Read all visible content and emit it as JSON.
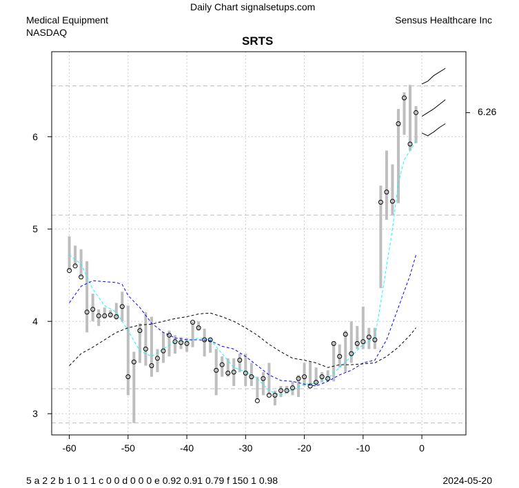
{
  "header": {
    "source": "Daily Chart signalsetups.com",
    "sector": "Medical Equipment",
    "exchange": "NASDAQ",
    "company": "Sensus Healthcare Inc"
  },
  "footer": {
    "codes": "5  a 2 2 b 1 0 1 1 c 0 0 d 0 0 0 e 0.92 0.91 0.79 f 150 1 0.98",
    "date": "2024-05-20"
  },
  "chart_data": {
    "type": "ohlc",
    "title": "SRTS",
    "xlim": [
      -63,
      7.5
    ],
    "ylim": [
      2.77,
      6.92
    ],
    "xticks": [
      -60,
      -50,
      -40,
      -30,
      -20,
      -10,
      0
    ],
    "yticks": [
      3,
      4,
      5,
      6
    ],
    "last_price_label": "6.26",
    "last_price": 6.26,
    "hlines": [
      6.55,
      5.15,
      3.27,
      2.9
    ],
    "bars": [
      [
        -60,
        4.55,
        4.92,
        4.55
      ],
      [
        -59,
        4.6,
        4.82,
        4.6
      ],
      [
        -58,
        4.48,
        4.78,
        4.48
      ],
      [
        -57,
        3.88,
        4.65,
        4.1
      ],
      [
        -56,
        4.0,
        4.3,
        4.13
      ],
      [
        -55,
        3.95,
        4.13,
        4.06
      ],
      [
        -54,
        4.03,
        4.15,
        4.06
      ],
      [
        -53,
        4.04,
        4.12,
        4.07
      ],
      [
        -52,
        4.02,
        4.2,
        4.05
      ],
      [
        -51,
        4.0,
        4.32,
        4.16
      ],
      [
        -50,
        3.2,
        4.17,
        3.4
      ],
      [
        -49,
        2.9,
        3.67,
        3.56
      ],
      [
        -48,
        3.55,
        3.98,
        3.9
      ],
      [
        -47,
        3.52,
        4.1,
        3.7
      ],
      [
        -46,
        3.4,
        4.05,
        3.52
      ],
      [
        -45,
        3.45,
        3.7,
        3.6
      ],
      [
        -44,
        3.55,
        3.88,
        3.68
      ],
      [
        -43,
        3.62,
        3.9,
        3.85
      ],
      [
        -42,
        3.65,
        3.85,
        3.78
      ],
      [
        -41,
        3.7,
        3.83,
        3.77
      ],
      [
        -40,
        3.67,
        3.82,
        3.76
      ],
      [
        -39,
        3.72,
        4.0,
        3.99
      ],
      [
        -38,
        3.9,
        4.0,
        3.93
      ],
      [
        -37,
        3.62,
        3.92,
        3.8
      ],
      [
        -36,
        3.66,
        3.82,
        3.8
      ],
      [
        -35,
        3.2,
        3.7,
        3.47
      ],
      [
        -34,
        3.4,
        3.62,
        3.53
      ],
      [
        -33,
        3.4,
        3.6,
        3.44
      ],
      [
        -32,
        3.3,
        3.6,
        3.45
      ],
      [
        -31,
        3.45,
        3.65,
        3.58
      ],
      [
        -30,
        3.3,
        3.65,
        3.44
      ],
      [
        -29,
        3.3,
        3.55,
        3.4
      ],
      [
        -28,
        3.15,
        3.4,
        3.14
      ],
      [
        -27,
        3.2,
        3.45,
        3.38
      ],
      [
        -26,
        3.2,
        3.55,
        3.2
      ],
      [
        -25,
        3.09,
        3.25,
        3.2
      ],
      [
        -24,
        3.18,
        3.3,
        3.25
      ],
      [
        -23,
        3.22,
        3.3,
        3.25
      ],
      [
        -22,
        3.2,
        3.35,
        3.28
      ],
      [
        -21,
        3.18,
        3.42,
        3.38
      ],
      [
        -20,
        3.3,
        3.55,
        3.4
      ],
      [
        -19,
        3.3,
        3.56,
        3.3
      ],
      [
        -18,
        3.3,
        3.5,
        3.34
      ],
      [
        -17,
        3.34,
        3.45,
        3.4
      ],
      [
        -16,
        3.36,
        3.47,
        3.38
      ],
      [
        -15,
        3.35,
        3.78,
        3.76
      ],
      [
        -14,
        3.5,
        3.75,
        3.62
      ],
      [
        -13,
        3.45,
        3.9,
        3.86
      ],
      [
        -12,
        3.55,
        4.0,
        3.65
      ],
      [
        -11,
        3.7,
        3.95,
        3.76
      ],
      [
        -10,
        3.7,
        4.16,
        3.78
      ],
      [
        -9,
        3.7,
        3.93,
        3.83
      ],
      [
        -8,
        3.7,
        3.93,
        3.8
      ],
      [
        -7,
        4.36,
        5.47,
        5.29
      ],
      [
        -6,
        5.1,
        5.85,
        5.4
      ],
      [
        -5,
        5.15,
        5.7,
        5.3
      ],
      [
        -4,
        5.28,
        6.3,
        6.14
      ],
      [
        -3,
        6.02,
        6.48,
        6.42
      ],
      [
        -2,
        5.85,
        6.56,
        5.92
      ],
      [
        -1,
        5.93,
        6.33,
        6.26
      ]
    ],
    "series": [
      {
        "name": "ma-short",
        "color": "#00ffff",
        "x": [
          -60,
          -58,
          -56,
          -54,
          -52,
          -50,
          -48,
          -46,
          -44,
          -42,
          -40,
          -38,
          -36,
          -34,
          -32,
          -30,
          -28,
          -26,
          -24,
          -22,
          -20,
          -18,
          -16,
          -14,
          -12,
          -10,
          -8,
          -7,
          -6,
          -5,
          -4,
          -3,
          -2,
          -1
        ],
        "y": [
          4.72,
          4.62,
          4.35,
          4.17,
          4.1,
          3.9,
          3.68,
          3.62,
          3.7,
          3.78,
          3.78,
          3.82,
          3.8,
          3.65,
          3.5,
          3.45,
          3.38,
          3.25,
          3.2,
          3.26,
          3.32,
          3.33,
          3.38,
          3.5,
          3.62,
          3.75,
          3.82,
          4.2,
          4.6,
          5.0,
          5.5,
          5.75,
          5.85,
          5.95
        ]
      },
      {
        "name": "ma-mid",
        "color": "#0000ff",
        "x": [
          -60,
          -58,
          -56,
          -54,
          -52,
          -51,
          -50,
          -48,
          -46,
          -44,
          -42,
          -40,
          -38,
          -36,
          -34,
          -32,
          -30,
          -28,
          -26,
          -24,
          -22,
          -20,
          -18,
          -16,
          -14,
          -12,
          -10,
          -8,
          -6,
          -4,
          -2,
          -1
        ],
        "y": [
          4.2,
          4.38,
          4.44,
          4.43,
          4.42,
          4.4,
          4.28,
          4.15,
          3.98,
          3.88,
          3.82,
          3.8,
          3.8,
          3.79,
          3.73,
          3.7,
          3.62,
          3.52,
          3.42,
          3.36,
          3.35,
          3.32,
          3.3,
          3.35,
          3.42,
          3.47,
          3.55,
          3.58,
          3.8,
          4.15,
          4.5,
          4.72
        ]
      },
      {
        "name": "ma-long",
        "color": "#000000",
        "x": [
          -60,
          -58,
          -56,
          -54,
          -52,
          -50,
          -48,
          -46,
          -44,
          -42,
          -40,
          -38,
          -36,
          -34,
          -32,
          -30,
          -28,
          -26,
          -24,
          -22,
          -20,
          -18,
          -16,
          -14,
          -12,
          -10,
          -8,
          -6,
          -4,
          -2,
          -1
        ],
        "y": [
          3.52,
          3.65,
          3.72,
          3.8,
          3.88,
          3.93,
          3.96,
          3.97,
          4.0,
          4.03,
          4.05,
          4.08,
          4.09,
          4.05,
          4.0,
          3.93,
          3.85,
          3.75,
          3.67,
          3.6,
          3.58,
          3.55,
          3.5,
          3.53,
          3.53,
          3.54,
          3.55,
          3.62,
          3.72,
          3.85,
          3.93
        ]
      }
    ],
    "projections": [
      {
        "x": [
          0,
          1,
          2,
          3,
          4
        ],
        "y": [
          6.57,
          6.6,
          6.66,
          6.7,
          6.74
        ]
      },
      {
        "x": [
          0,
          1,
          2,
          3,
          4
        ],
        "y": [
          6.22,
          6.26,
          6.3,
          6.35,
          6.4
        ]
      },
      {
        "x": [
          0,
          1,
          2,
          3,
          4
        ],
        "y": [
          6.04,
          6.01,
          6.05,
          6.1,
          6.14
        ]
      }
    ]
  }
}
